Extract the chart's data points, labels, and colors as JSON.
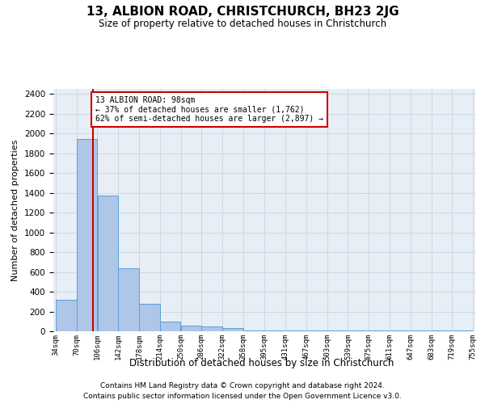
{
  "title": "13, ALBION ROAD, CHRISTCHURCH, BH23 2JG",
  "subtitle": "Size of property relative to detached houses in Christchurch",
  "xlabel": "Distribution of detached houses by size in Christchurch",
  "ylabel": "Number of detached properties",
  "footnote1": "Contains HM Land Registry data © Crown copyright and database right 2024.",
  "footnote2": "Contains public sector information licensed under the Open Government Licence v3.0.",
  "property_size": 98,
  "property_label": "13 ALBION ROAD: 98sqm",
  "annotation_line1": "← 37% of detached houses are smaller (1,762)",
  "annotation_line2": "62% of semi-detached houses are larger (2,897) →",
  "bar_edges": [
    34,
    70,
    106,
    142,
    178,
    214,
    250,
    286,
    322,
    358,
    395,
    431,
    467,
    503,
    539,
    575,
    611,
    647,
    683,
    719,
    755
  ],
  "bar_heights": [
    320,
    1940,
    1370,
    640,
    280,
    100,
    55,
    45,
    30,
    5,
    5,
    5,
    5,
    5,
    5,
    5,
    5,
    5,
    5,
    5
  ],
  "bar_color": "#aec6e8",
  "bar_edge_color": "#5a9fd4",
  "line_color": "#cc0000",
  "annotation_box_color": "#cc0000",
  "background_color": "#ffffff",
  "grid_color": "#c8d4e0",
  "ylim": [
    0,
    2450
  ],
  "yticks": [
    0,
    200,
    400,
    600,
    800,
    1000,
    1200,
    1400,
    1600,
    1800,
    2000,
    2200,
    2400
  ]
}
